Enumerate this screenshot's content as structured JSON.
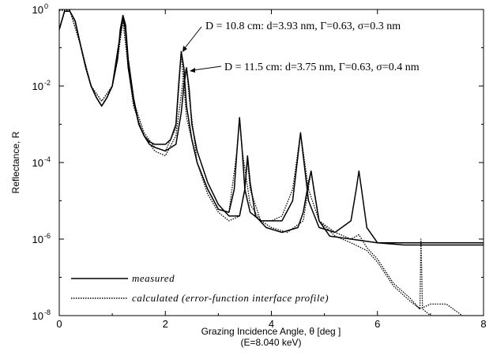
{
  "chart_data": {
    "type": "line",
    "x_axis": {
      "label_line1": "Grazing Incidence Angle, θ [deg ]",
      "label_line2": "(E=8.040 keV)",
      "lim": [
        0,
        8
      ],
      "ticks": [
        0,
        2,
        4,
        6,
        8
      ]
    },
    "y_axis": {
      "label": "Reflectance, R",
      "scale": "log",
      "lim": [
        1e-08,
        1
      ],
      "ticks": [
        {
          "value": 1e-08,
          "base": "10",
          "exp": "-8"
        },
        {
          "value": 1e-06,
          "base": "10",
          "exp": "-6"
        },
        {
          "value": 0.0001,
          "base": "10",
          "exp": "-4"
        },
        {
          "value": 0.01,
          "base": "10",
          "exp": "-2"
        },
        {
          "value": 1,
          "base": "10",
          "exp": "0"
        }
      ]
    },
    "legend": {
      "position": "bottom-left",
      "entries": [
        {
          "label": "measured",
          "style": "solid"
        },
        {
          "label": "calculated (error-function interface profile)",
          "style": "dotted"
        }
      ]
    },
    "annotations": [
      {
        "text": "D = 10.8 cm: d=3.93 nm, Γ=0.63, σ=0.3 nm",
        "points_to": [
          2.3,
          0.08
        ]
      },
      {
        "text": "D = 11.5 cm: d=3.75 nm, Γ=0.63, σ=0.4 nm",
        "points_to": [
          2.4,
          0.03
        ]
      }
    ],
    "series": [
      {
        "name": "measured",
        "style": "solid",
        "line_color": "#000000",
        "sample": "D = 10.8 cm",
        "x": [
          0.0,
          0.1,
          0.2,
          0.3,
          0.4,
          0.5,
          0.6,
          0.7,
          0.8,
          0.9,
          1.0,
          1.1,
          1.15,
          1.2,
          1.25,
          1.3,
          1.4,
          1.5,
          1.6,
          1.7,
          1.8,
          2.0,
          2.1,
          2.2,
          2.25,
          2.3,
          2.35,
          2.4,
          2.5,
          2.6,
          2.8,
          3.0,
          3.2,
          3.3,
          3.35,
          3.4,
          3.45,
          3.5,
          3.6,
          3.8,
          4.0,
          4.2,
          4.4,
          4.5,
          4.55,
          4.6,
          4.7,
          4.9,
          5.2,
          5.5,
          5.6,
          5.65,
          5.7,
          5.8,
          6.0,
          6.5,
          7.0,
          7.5,
          8.0
        ],
        "y": [
          0.3,
          0.9,
          0.9,
          0.5,
          0.12,
          0.03,
          0.01,
          0.005,
          0.003,
          0.005,
          0.01,
          0.05,
          0.3,
          0.7,
          0.4,
          0.05,
          0.005,
          0.001,
          0.0005,
          0.00035,
          0.0003,
          0.0003,
          0.0004,
          0.001,
          0.01,
          0.08,
          0.03,
          0.003,
          0.0004,
          0.0001,
          2e-05,
          6e-06,
          5e-06,
          2e-05,
          0.0002,
          0.0015,
          0.0002,
          2e-05,
          5e-06,
          3e-06,
          3e-06,
          3e-06,
          1e-05,
          0.00015,
          0.0006,
          0.00015,
          1e-05,
          2e-06,
          1.5e-06,
          3e-06,
          2e-05,
          6e-05,
          2e-05,
          2e-06,
          8e-07,
          7e-07,
          7e-07,
          7e-07,
          7e-07
        ]
      },
      {
        "name": "measured",
        "style": "solid",
        "line_color": "#000000",
        "sample": "D = 11.5 cm",
        "x": [
          0.0,
          0.1,
          0.2,
          0.3,
          0.4,
          0.5,
          0.6,
          0.7,
          0.8,
          0.9,
          1.0,
          1.1,
          1.2,
          1.25,
          1.3,
          1.4,
          1.5,
          1.6,
          1.7,
          1.8,
          2.0,
          2.2,
          2.3,
          2.35,
          2.4,
          2.45,
          2.5,
          2.6,
          2.8,
          3.0,
          3.2,
          3.4,
          3.5,
          3.55,
          3.6,
          3.7,
          3.9,
          4.2,
          4.5,
          4.6,
          4.7,
          4.75,
          4.8,
          4.9,
          5.1,
          5.5,
          6.0,
          6.5,
          7.0,
          7.5,
          8.0
        ],
        "y": [
          0.3,
          0.9,
          0.9,
          0.5,
          0.12,
          0.03,
          0.01,
          0.005,
          0.003,
          0.005,
          0.01,
          0.08,
          0.6,
          0.3,
          0.03,
          0.004,
          0.001,
          0.0005,
          0.0003,
          0.00025,
          0.0002,
          0.0003,
          0.002,
          0.01,
          0.03,
          0.008,
          0.001,
          0.0002,
          3e-05,
          8e-06,
          4e-06,
          4e-06,
          2e-05,
          0.00015,
          3e-05,
          4e-06,
          2e-06,
          1.5e-06,
          2e-06,
          5e-06,
          3e-05,
          6e-05,
          2e-05,
          3e-06,
          1.2e-06,
          1e-06,
          8e-07,
          8e-07,
          8e-07,
          8e-07,
          8e-07
        ]
      },
      {
        "name": "calculated (error-function interface profile)",
        "style": "dotted",
        "line_color": "#000000",
        "sample": "D = 10.8 cm",
        "x": [
          0.0,
          0.2,
          0.4,
          0.6,
          0.8,
          1.0,
          1.1,
          1.2,
          1.3,
          1.4,
          1.6,
          1.8,
          2.0,
          2.2,
          2.3,
          2.4,
          2.6,
          2.8,
          3.0,
          3.2,
          3.35,
          3.4,
          3.45,
          3.6,
          3.8,
          4.0,
          4.2,
          4.4,
          4.55,
          4.7,
          4.9,
          5.2,
          5.5,
          5.65,
          5.8,
          6.0,
          6.3,
          6.6,
          6.8,
          7.0,
          7.3,
          7.6,
          8.0
        ],
        "y": [
          0.95,
          0.95,
          0.12,
          0.01,
          0.004,
          0.01,
          0.05,
          0.7,
          0.05,
          0.004,
          0.0006,
          0.00025,
          0.0002,
          0.0008,
          0.07,
          0.0015,
          0.0001,
          2e-05,
          6e-06,
          5e-06,
          0.0002,
          0.0015,
          0.0002,
          8e-06,
          3e-06,
          3e-06,
          4e-06,
          2e-05,
          0.0006,
          2e-05,
          3e-06,
          1.5e-06,
          1e-06,
          1.3e-06,
          6e-07,
          3e-07,
          7e-08,
          3e-08,
          1.5e-08,
          2e-08,
          2e-08,
          1e-08,
          5e-09
        ]
      },
      {
        "name": "calculated (error-function interface profile)",
        "style": "dotted",
        "line_color": "#000000",
        "sample": "D = 11.5 cm",
        "x": [
          0.0,
          0.2,
          0.4,
          0.6,
          0.8,
          1.0,
          1.1,
          1.2,
          1.3,
          1.4,
          1.6,
          1.8,
          2.0,
          2.2,
          2.35,
          2.4,
          2.45,
          2.6,
          2.8,
          3.0,
          3.2,
          3.4,
          3.5,
          3.55,
          3.6,
          3.8,
          4.0,
          4.3,
          4.6,
          4.75,
          4.9,
          5.2,
          5.5,
          5.8,
          6.0,
          6.3,
          6.6,
          6.8,
          6.82,
          6.85,
          7.0,
          7.5,
          8.0
        ],
        "y": [
          0.95,
          0.95,
          0.12,
          0.01,
          0.004,
          0.01,
          0.05,
          0.5,
          0.03,
          0.003,
          0.0005,
          0.0002,
          0.00015,
          0.0005,
          0.02,
          0.03,
          0.005,
          0.0001,
          1.5e-05,
          5e-06,
          3e-06,
          4e-06,
          2e-05,
          0.00012,
          2e-05,
          3e-06,
          2e-06,
          1.5e-06,
          3e-06,
          6e-05,
          3e-06,
          1.2e-06,
          8e-07,
          5e-07,
          2.5e-07,
          6e-08,
          2.5e-08,
          1.5e-08,
          1e-06,
          1.5e-08,
          1e-08,
          1e-08,
          1e-08
        ]
      }
    ]
  }
}
